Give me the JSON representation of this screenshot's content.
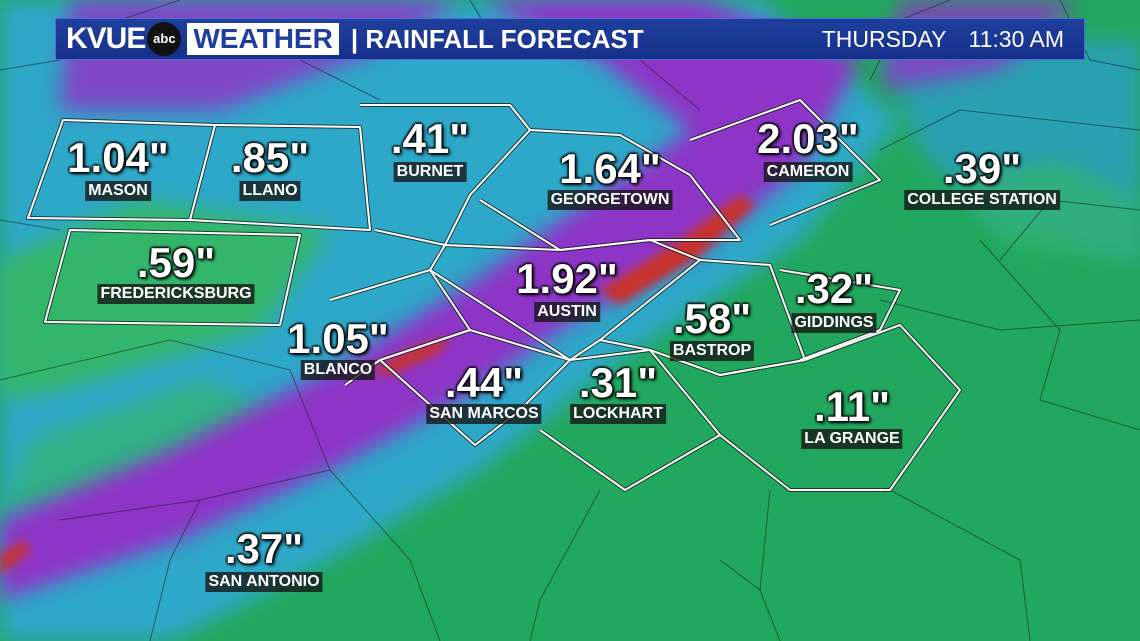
{
  "header": {
    "brand": "KVUE",
    "network_logo": "abc",
    "weather_label": "WEATHER",
    "title": "| RAINFALL FORECAST",
    "day": "THURSDAY",
    "time": "11:30 AM"
  },
  "locations": [
    {
      "city": "MASON",
      "amount": "1.04\""
    },
    {
      "city": "LLANO",
      "amount": ".85\""
    },
    {
      "city": "BURNET",
      "amount": ".41\""
    },
    {
      "city": "GEORGETOWN",
      "amount": "1.64\""
    },
    {
      "city": "CAMERON",
      "amount": "2.03\""
    },
    {
      "city": "COLLEGE STATION",
      "amount": ".39\""
    },
    {
      "city": "FREDERICKSBURG",
      "amount": ".59\""
    },
    {
      "city": "AUSTIN",
      "amount": "1.92\""
    },
    {
      "city": "GIDDINGS",
      "amount": ".32\""
    },
    {
      "city": "BLANCO",
      "amount": "1.05\""
    },
    {
      "city": "BASTROP",
      "amount": ".58\""
    },
    {
      "city": "SAN MARCOS",
      "amount": ".44\""
    },
    {
      "city": "LOCKHART",
      "amount": ".31\""
    },
    {
      "city": "LA GRANGE",
      "amount": ".11\""
    },
    {
      "city": "SAN ANTONIO",
      "amount": ".37\""
    }
  ],
  "colors": {
    "light_rain": "#1fa35c",
    "moderate_rain": "#2aa6c4",
    "heavy_rain": "#8a2fc0",
    "very_heavy_rain": "#c0392b",
    "header_bg": "#1f3f9e"
  }
}
